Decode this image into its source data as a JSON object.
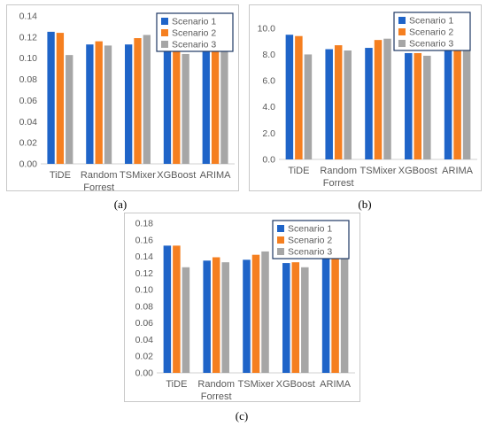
{
  "chart_data": [
    {
      "type": "bar",
      "caption": "(a)",
      "categories": [
        [
          "TiDE"
        ],
        [
          "Random",
          "Forrest"
        ],
        [
          "TSMixer"
        ],
        [
          "XGBoost"
        ],
        [
          "ARIMA"
        ]
      ],
      "series": [
        {
          "name": "Scenario 1",
          "color": "#1f64c8",
          "values": [
            0.125,
            0.113,
            0.113,
            0.108,
            0.125
          ]
        },
        {
          "name": "Scenario 2",
          "color": "#f57f20",
          "values": [
            0.124,
            0.116,
            0.119,
            0.108,
            0.13
          ]
        },
        {
          "name": "Scenario 3",
          "color": "#a6a6a6",
          "values": [
            0.103,
            0.112,
            0.122,
            0.104,
            0.13
          ]
        }
      ],
      "yticks": [
        "0.00",
        "0.02",
        "0.04",
        "0.06",
        "0.08",
        "0.10",
        "0.12",
        "0.14"
      ],
      "ylim": [
        0,
        0.14
      ],
      "legend": "top-right",
      "grid": false
    },
    {
      "type": "bar",
      "caption": "(b)",
      "categories": [
        [
          "TiDE"
        ],
        [
          "Random",
          "Forrest"
        ],
        [
          "TSMixer"
        ],
        [
          "XGBoost"
        ],
        [
          "ARIMA"
        ]
      ],
      "series": [
        {
          "name": "Scenario 1",
          "color": "#1f64c8",
          "values": [
            9.5,
            8.4,
            8.5,
            8.1,
            10.5
          ]
        },
        {
          "name": "Scenario 2",
          "color": "#f57f20",
          "values": [
            9.4,
            8.7,
            9.1,
            8.1,
            10.7
          ]
        },
        {
          "name": "Scenario 3",
          "color": "#a6a6a6",
          "values": [
            8.0,
            8.3,
            9.2,
            7.9,
            10.7
          ]
        }
      ],
      "yticks": [
        "0.0",
        "2.0",
        "4.0",
        "6.0",
        "8.0",
        "10.0"
      ],
      "ylim": [
        0,
        11
      ],
      "legend": "top-right",
      "grid": false
    },
    {
      "type": "bar",
      "caption": "(c)",
      "categories": [
        [
          "TiDE"
        ],
        [
          "Random",
          "Forrest"
        ],
        [
          "TSMixer"
        ],
        [
          "XGBoost"
        ],
        [
          "ARIMA"
        ]
      ],
      "series": [
        {
          "name": "Scenario 1",
          "color": "#1f64c8",
          "values": [
            0.153,
            0.135,
            0.136,
            0.132,
            0.15
          ]
        },
        {
          "name": "Scenario 2",
          "color": "#f57f20",
          "values": [
            0.153,
            0.139,
            0.142,
            0.133,
            0.154
          ]
        },
        {
          "name": "Scenario 3",
          "color": "#a6a6a6",
          "values": [
            0.127,
            0.133,
            0.146,
            0.127,
            0.154
          ]
        }
      ],
      "yticks": [
        "0.00",
        "0.02",
        "0.04",
        "0.06",
        "0.08",
        "0.10",
        "0.12",
        "0.14",
        "0.16",
        "0.18"
      ],
      "ylim": [
        0,
        0.18
      ],
      "legend": "top-right",
      "grid": false
    }
  ]
}
